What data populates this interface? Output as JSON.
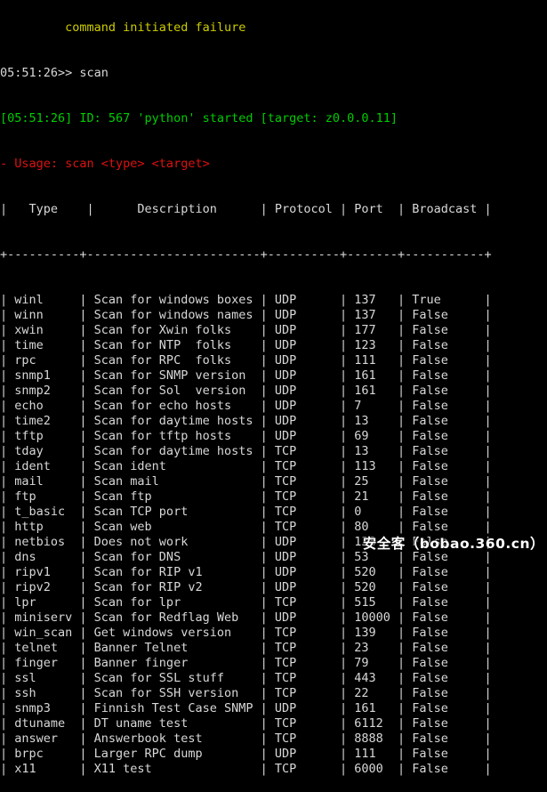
{
  "colors": {
    "background": "#000000",
    "foreground": "#d8d8d8",
    "green": "#00cc00",
    "red": "#dd1111",
    "yellow": "#cccc00"
  },
  "terminal": {
    "clipped_top_line": "         command initiated failure",
    "prompt_line": "05:51:26>> scan",
    "event_line": "[05:51:26] ID: 567 'python' started [target: z0.0.0.11]",
    "usage_line": "- Usage: scan <type> <target>"
  },
  "table": {
    "headers": [
      "Type",
      "Description",
      "Protocol",
      "Port",
      "Broadcast"
    ],
    "header_line": "|   Type    |      Description      | Protocol | Port  | Broadcast |",
    "separator_line": "+----------+------------------------+----------+-------+-----------+",
    "col_pad": [
      9,
      23,
      9,
      6,
      10
    ],
    "rows": [
      [
        "winl",
        "Scan for windows boxes",
        "UDP",
        "137",
        "True"
      ],
      [
        "winn",
        "Scan for windows names",
        "UDP",
        "137",
        "False"
      ],
      [
        "xwin",
        "Scan for Xwin folks",
        "UDP",
        "177",
        "False"
      ],
      [
        "time",
        "Scan for NTP  folks",
        "UDP",
        "123",
        "False"
      ],
      [
        "rpc",
        "Scan for RPC  folks",
        "UDP",
        "111",
        "False"
      ],
      [
        "snmp1",
        "Scan for SNMP version",
        "UDP",
        "161",
        "False"
      ],
      [
        "snmp2",
        "Scan for Sol  version",
        "UDP",
        "161",
        "False"
      ],
      [
        "echo",
        "Scan for echo hosts",
        "UDP",
        "7",
        "False"
      ],
      [
        "time2",
        "Scan for daytime hosts",
        "UDP",
        "13",
        "False"
      ],
      [
        "tftp",
        "Scan for tftp hosts",
        "UDP",
        "69",
        "False"
      ],
      [
        "tday",
        "Scan for daytime hosts",
        "TCP",
        "13",
        "False"
      ],
      [
        "ident",
        "Scan ident",
        "TCP",
        "113",
        "False"
      ],
      [
        "mail",
        "Scan mail",
        "TCP",
        "25",
        "False"
      ],
      [
        "ftp",
        "Scan ftp",
        "TCP",
        "21",
        "False"
      ],
      [
        "t_basic",
        "Scan TCP port",
        "TCP",
        "0",
        "False"
      ],
      [
        "http",
        "Scan web",
        "TCP",
        "80",
        "False"
      ],
      [
        "netbios",
        "Does not work",
        "UDP",
        "138",
        "False"
      ],
      [
        "dns",
        "Scan for DNS",
        "UDP",
        "53",
        "False"
      ],
      [
        "ripv1",
        "Scan for RIP v1",
        "UDP",
        "520",
        "False"
      ],
      [
        "ripv2",
        "Scan for RIP v2",
        "UDP",
        "520",
        "False"
      ],
      [
        "lpr",
        "Scan for lpr",
        "TCP",
        "515",
        "False"
      ],
      [
        "miniserv",
        "Scan for Redflag Web",
        "UDP",
        "10000",
        "False"
      ],
      [
        "win_scan",
        "Get windows version",
        "TCP",
        "139",
        "False"
      ],
      [
        "telnet",
        "Banner Telnet",
        "TCP",
        "23",
        "False"
      ],
      [
        "finger",
        "Banner finger",
        "TCP",
        "79",
        "False"
      ],
      [
        "ssl",
        "Scan for SSL stuff",
        "TCP",
        "443",
        "False"
      ],
      [
        "ssh",
        "Scan for SSH version",
        "TCP",
        "22",
        "False"
      ],
      [
        "snmp3",
        "Finnish Test Case SNMP",
        "UDP",
        "161",
        "False"
      ],
      [
        "dtuname",
        "DT uname test",
        "TCP",
        "6112",
        "False"
      ],
      [
        "answer",
        "Answerbook test",
        "TCP",
        "8888",
        "False"
      ],
      [
        "brpc",
        "Larger RPC dump",
        "UDP",
        "111",
        "False"
      ]
    ],
    "clipped_row": [
      "x11",
      "X11 test",
      "TCP",
      "6000",
      "False"
    ]
  },
  "watermark": {
    "text": "安全客（bobao.360.cn）"
  }
}
